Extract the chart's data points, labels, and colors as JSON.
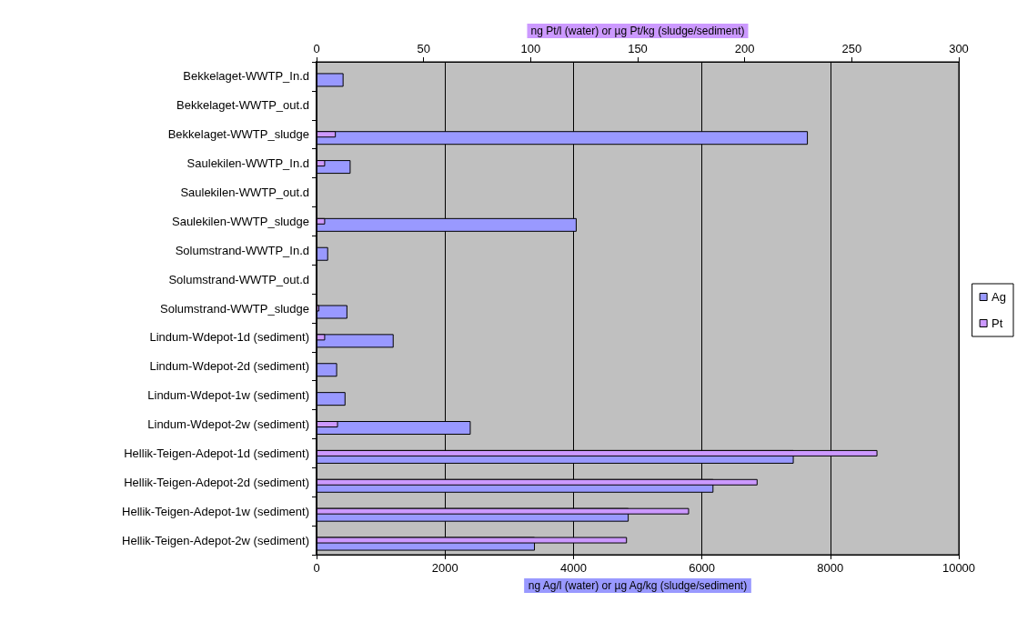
{
  "chart_data": {
    "type": "bar",
    "orientation": "horizontal",
    "xlabel": "ng Ag/l (water) or µg Ag/kg (sludge/sediment)",
    "x2label": "ng Pt/l (water) or µg Pt/kg (sludge/sediment)",
    "categories": [
      "Bekkelaget-WWTP_In.d",
      "Bekkelaget-WWTP_out.d",
      "Bekkelaget-WWTP_sludge",
      "Saulekilen-WWTP_In.d",
      "Saulekilen-WWTP_out.d",
      "Saulekilen-WWTP_sludge",
      "Solumstrand-WWTP_In.d",
      "Solumstrand-WWTP_out.d",
      "Solumstrand-WWTP_sludge",
      "Lindum-Wdepot-1d (sediment)",
      "Lindum-Wdepot-2d (sediment)",
      "Lindum-Wdepot-1w (sediment)",
      "Lindum-Wdepot-2w (sediment)",
      "Hellik-Teigen-Adepot-1d (sediment)",
      "Hellik-Teigen-Adepot-2d (sediment)",
      "Hellik-Teigen-Adepot-1w (sediment)",
      "Hellik-Teigen-Adepot-2w (sediment)"
    ],
    "series": [
      {
        "name": "Ag",
        "color": "#9999ff",
        "values": [
          420,
          null,
          7650,
          530,
          null,
          4050,
          180,
          null,
          480,
          1200,
          320,
          450,
          2400,
          7430,
          6180,
          4860,
          3400
        ]
      },
      {
        "name": "Pt",
        "color": "#cc99ff",
        "axis": "x2",
        "values": [
          null,
          null,
          9,
          4,
          null,
          4,
          null,
          null,
          1.3,
          4,
          null,
          null,
          10,
          262,
          206,
          174,
          145
        ]
      }
    ],
    "xlim": [
      0,
      10000
    ],
    "xticks": [
      0,
      2000,
      4000,
      6000,
      8000,
      10000
    ],
    "x2lim": [
      0,
      300
    ],
    "x2ticks": [
      0,
      50,
      100,
      150,
      200,
      250,
      300
    ],
    "grid": "x",
    "legend": "right"
  }
}
